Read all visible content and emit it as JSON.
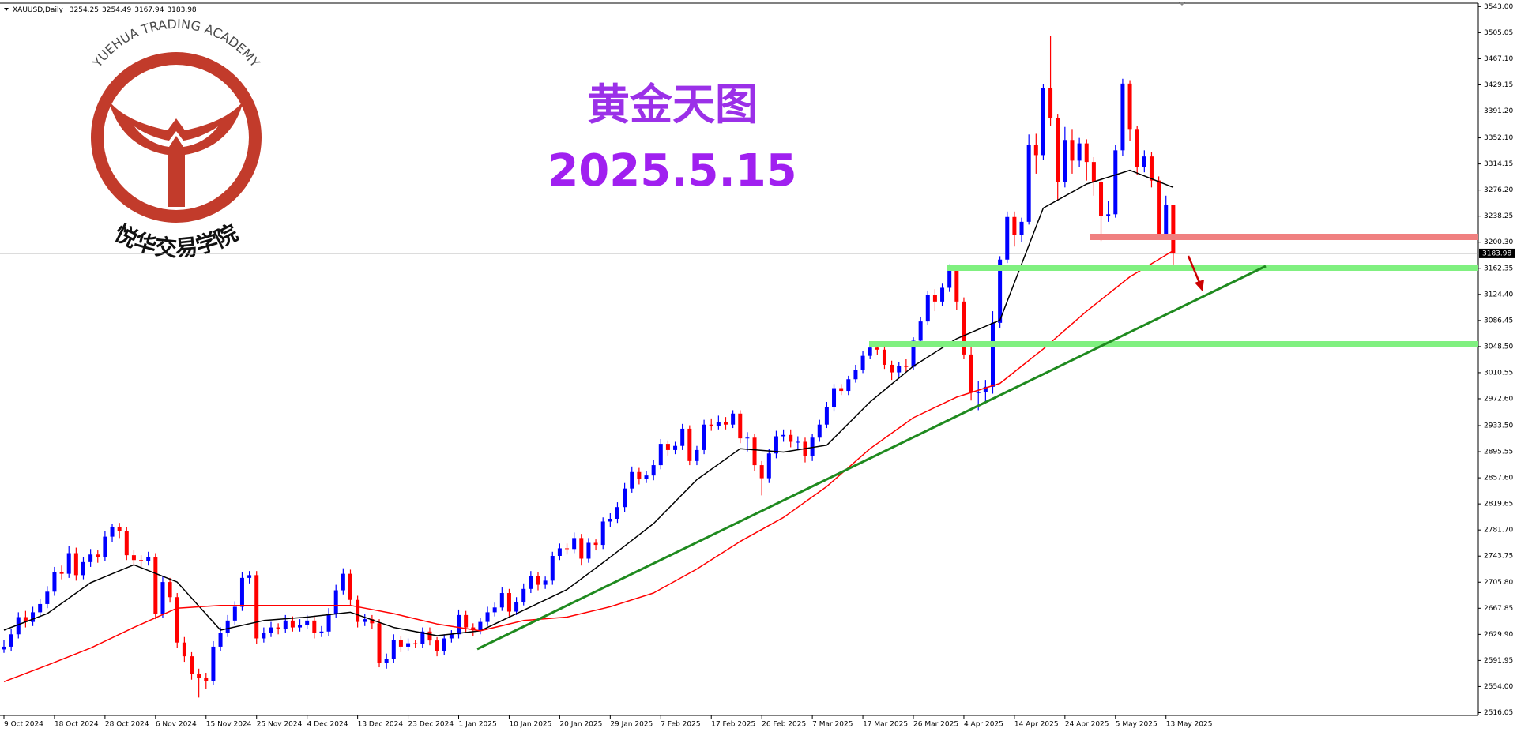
{
  "chart_data": {
    "type": "candlestick",
    "title": "XAUUSD,Daily",
    "annotations": [
      "黄金天图",
      "2025.5.15"
    ],
    "up_color": "#0000ff",
    "down_color": "#ff0000",
    "ylim": [
      2512,
      3548
    ],
    "yticks": [
      {
        "value": 3543,
        "label": "3543.00"
      },
      3505.05,
      {
        "value": 3467.1,
        "label": "3467.10"
      },
      3429.15,
      {
        "value": 3391.2,
        "label": "3391.20"
      },
      {
        "value": 3352.1,
        "label": "3352.10"
      },
      3314.15,
      {
        "value": 3276.2,
        "label": "3276.20"
      },
      3238.25,
      {
        "value": 3200.3,
        "label": "3200.30"
      },
      3162.35,
      {
        "value": 3124.4,
        "label": "3124.40"
      },
      3086.45,
      {
        "value": 3048.5,
        "label": "3048.50"
      },
      3010.55,
      {
        "value": 2972.6,
        "label": "2972.60"
      },
      {
        "value": 2933.5,
        "label": "2933.50"
      },
      2895.55,
      {
        "value": 2857.6,
        "label": "2857.60"
      },
      2819.65,
      {
        "value": 2781.7,
        "label": "2781.70"
      },
      2743.75,
      {
        "value": 2705.8,
        "label": "2705.80"
      },
      2667.85,
      {
        "value": 2629.9,
        "label": "2629.90"
      },
      2591.95,
      {
        "value": 2554,
        "label": "2554.00"
      },
      2516.05
    ],
    "categories": [
      "9 Oct 2024",
      null,
      null,
      null,
      null,
      null,
      null,
      "18 Oct 2024",
      null,
      null,
      null,
      null,
      null,
      null,
      "28 Oct 2024",
      null,
      null,
      null,
      null,
      null,
      null,
      "6 Nov 2024",
      null,
      null,
      null,
      null,
      null,
      null,
      "15 Nov 2024",
      null,
      null,
      null,
      null,
      null,
      null,
      "25 Nov 2024",
      null,
      null,
      null,
      null,
      null,
      null,
      "4 Dec 2024",
      null,
      null,
      null,
      null,
      null,
      null,
      "13 Dec 2024",
      null,
      null,
      null,
      null,
      null,
      null,
      "23 Dec 2024",
      null,
      null,
      null,
      null,
      null,
      null,
      "1 Jan 2025",
      null,
      null,
      null,
      null,
      null,
      null,
      "10 Jan 2025",
      null,
      null,
      null,
      null,
      null,
      null,
      "20 Jan 2025",
      null,
      null,
      null,
      null,
      null,
      null,
      "29 Jan 2025",
      null,
      null,
      null,
      null,
      null,
      null,
      "7 Feb 2025",
      null,
      null,
      null,
      null,
      null,
      null,
      "17 Feb 2025",
      null,
      null,
      null,
      null,
      null,
      null,
      "26 Feb 2025",
      null,
      null,
      null,
      null,
      null,
      null,
      "7 Mar 2025",
      null,
      null,
      null,
      null,
      null,
      null,
      "17 Mar 2025",
      null,
      null,
      null,
      null,
      null,
      null,
      "26 Mar 2025",
      null,
      null,
      null,
      null,
      null,
      null,
      "4 Apr 2025",
      null,
      null,
      null,
      null,
      null,
      null,
      "14 Apr 2025",
      null,
      null,
      null,
      null,
      null,
      null,
      "24 Apr 2025",
      null,
      null,
      null,
      null,
      null,
      null,
      "5 May 2025",
      null,
      null,
      null,
      null,
      null,
      null,
      "13 May 2025",
      null
    ],
    "ohlc": [
      [
        2608,
        2622,
        2603,
        2612
      ],
      [
        2612,
        2638,
        2605,
        2630
      ],
      [
        2630,
        2662,
        2624,
        2655
      ],
      [
        2655,
        2664,
        2640,
        2648
      ],
      [
        2648,
        2670,
        2642,
        2662
      ],
      [
        2662,
        2682,
        2655,
        2674
      ],
      [
        2674,
        2700,
        2668,
        2692
      ],
      [
        2692,
        2728,
        2686,
        2720
      ],
      [
        2720,
        2730,
        2710,
        2718
      ],
      [
        2718,
        2758,
        2712,
        2748
      ],
      [
        2748,
        2756,
        2708,
        2716
      ],
      [
        2716,
        2742,
        2710,
        2735
      ],
      [
        2735,
        2754,
        2728,
        2746
      ],
      [
        2746,
        2752,
        2734,
        2742
      ],
      [
        2742,
        2780,
        2736,
        2772
      ],
      [
        2772,
        2790,
        2764,
        2786
      ],
      [
        2786,
        2792,
        2770,
        2780
      ],
      [
        2780,
        2786,
        2738,
        2745
      ],
      [
        2745,
        2752,
        2730,
        2738
      ],
      [
        2738,
        2745,
        2728,
        2736
      ],
      [
        2736,
        2750,
        2730,
        2742
      ],
      [
        2742,
        2748,
        2652,
        2660
      ],
      [
        2660,
        2714,
        2654,
        2706
      ],
      [
        2706,
        2712,
        2676,
        2684
      ],
      [
        2684,
        2690,
        2610,
        2618
      ],
      [
        2618,
        2626,
        2590,
        2598
      ],
      [
        2598,
        2604,
        2564,
        2572
      ],
      [
        2572,
        2580,
        2538,
        2566
      ],
      [
        2566,
        2574,
        2550,
        2562
      ],
      [
        2562,
        2620,
        2556,
        2612
      ],
      [
        2612,
        2640,
        2606,
        2632
      ],
      [
        2632,
        2658,
        2626,
        2650
      ],
      [
        2650,
        2678,
        2644,
        2670
      ],
      [
        2670,
        2720,
        2664,
        2712
      ],
      [
        2712,
        2722,
        2704,
        2716
      ],
      [
        2716,
        2722,
        2616,
        2624
      ],
      [
        2624,
        2640,
        2618,
        2632
      ],
      [
        2632,
        2648,
        2626,
        2640
      ],
      [
        2640,
        2646,
        2630,
        2638
      ],
      [
        2638,
        2658,
        2632,
        2650
      ],
      [
        2650,
        2656,
        2634,
        2640
      ],
      [
        2640,
        2652,
        2634,
        2644
      ],
      [
        2644,
        2658,
        2638,
        2650
      ],
      [
        2650,
        2656,
        2624,
        2632
      ],
      [
        2632,
        2642,
        2626,
        2634
      ],
      [
        2634,
        2668,
        2628,
        2660
      ],
      [
        2660,
        2702,
        2654,
        2694
      ],
      [
        2694,
        2726,
        2688,
        2718
      ],
      [
        2718,
        2724,
        2672,
        2680
      ],
      [
        2680,
        2686,
        2640,
        2648
      ],
      [
        2648,
        2660,
        2642,
        2652
      ],
      [
        2652,
        2658,
        2638,
        2646
      ],
      [
        2646,
        2652,
        2582,
        2588
      ],
      [
        2588,
        2602,
        2580,
        2594
      ],
      [
        2594,
        2630,
        2588,
        2622
      ],
      [
        2622,
        2628,
        2604,
        2612
      ],
      [
        2612,
        2624,
        2606,
        2617
      ],
      [
        2617,
        2622,
        2610,
        2616
      ],
      [
        2616,
        2640,
        2610,
        2634
      ],
      [
        2634,
        2640,
        2614,
        2621
      ],
      [
        2621,
        2626,
        2598,
        2606
      ],
      [
        2606,
        2630,
        2600,
        2624
      ],
      [
        2624,
        2636,
        2618,
        2630
      ],
      [
        2630,
        2666,
        2624,
        2658
      ],
      [
        2658,
        2664,
        2632,
        2640
      ],
      [
        2640,
        2646,
        2628,
        2636
      ],
      [
        2636,
        2654,
        2630,
        2648
      ],
      [
        2648,
        2670,
        2642,
        2662
      ],
      [
        2662,
        2676,
        2656,
        2669
      ],
      [
        2669,
        2698,
        2664,
        2690
      ],
      [
        2690,
        2696,
        2656,
        2663
      ],
      [
        2663,
        2684,
        2658,
        2677
      ],
      [
        2677,
        2704,
        2672,
        2696
      ],
      [
        2696,
        2722,
        2690,
        2715
      ],
      [
        2715,
        2720,
        2694,
        2702
      ],
      [
        2702,
        2714,
        2696,
        2708
      ],
      [
        2708,
        2750,
        2702,
        2744
      ],
      [
        2744,
        2762,
        2738,
        2755
      ],
      [
        2755,
        2762,
        2746,
        2754
      ],
      [
        2754,
        2778,
        2748,
        2770
      ],
      [
        2770,
        2776,
        2730,
        2740
      ],
      [
        2740,
        2770,
        2734,
        2763
      ],
      [
        2763,
        2768,
        2752,
        2760
      ],
      [
        2760,
        2800,
        2754,
        2794
      ],
      [
        2794,
        2806,
        2786,
        2798
      ],
      [
        2798,
        2822,
        2792,
        2815
      ],
      [
        2815,
        2850,
        2808,
        2842
      ],
      [
        2842,
        2874,
        2836,
        2866
      ],
      [
        2866,
        2872,
        2848,
        2856
      ],
      [
        2856,
        2868,
        2850,
        2861
      ],
      [
        2861,
        2884,
        2854,
        2876
      ],
      [
        2876,
        2914,
        2870,
        2907
      ],
      [
        2907,
        2912,
        2890,
        2898
      ],
      [
        2898,
        2910,
        2892,
        2904
      ],
      [
        2904,
        2936,
        2898,
        2929
      ],
      [
        2929,
        2934,
        2876,
        2882
      ],
      [
        2882,
        2904,
        2876,
        2898
      ],
      [
        2898,
        2942,
        2892,
        2935
      ],
      [
        2935,
        2944,
        2926,
        2933
      ],
      [
        2933,
        2948,
        2928,
        2939
      ],
      [
        2939,
        2946,
        2928,
        2935
      ],
      [
        2935,
        2956,
        2930,
        2951
      ],
      [
        2951,
        2956,
        2908,
        2915
      ],
      [
        2915,
        2924,
        2896,
        2916
      ],
      [
        2916,
        2922,
        2868,
        2876
      ],
      [
        2876,
        2882,
        2832,
        2857
      ],
      [
        2857,
        2900,
        2850,
        2893
      ],
      [
        2893,
        2926,
        2886,
        2918
      ],
      [
        2918,
        2928,
        2910,
        2920
      ],
      [
        2920,
        2928,
        2902,
        2910
      ],
      [
        2910,
        2918,
        2900,
        2910
      ],
      [
        2910,
        2916,
        2880,
        2889
      ],
      [
        2889,
        2922,
        2882,
        2916
      ],
      [
        2916,
        2942,
        2910,
        2935
      ],
      [
        2935,
        2968,
        2930,
        2960
      ],
      [
        2960,
        2994,
        2954,
        2988
      ],
      [
        2988,
        2994,
        2978,
        2984
      ],
      [
        2984,
        3006,
        2978,
        3001
      ],
      [
        3001,
        3022,
        2996,
        3015
      ],
      [
        3015,
        3042,
        3010,
        3035
      ],
      [
        3035,
        3056,
        3030,
        3047
      ],
      [
        3047,
        3056,
        3036,
        3044
      ],
      [
        3044,
        3050,
        3016,
        3022
      ],
      [
        3022,
        3028,
        3000,
        3011
      ],
      [
        3011,
        3026,
        3004,
        3020
      ],
      [
        3020,
        3030,
        3012,
        3019
      ],
      [
        3019,
        3062,
        3014,
        3057
      ],
      [
        3057,
        3092,
        3052,
        3085
      ],
      [
        3085,
        3130,
        3080,
        3124
      ],
      [
        3124,
        3132,
        3100,
        3114
      ],
      [
        3114,
        3140,
        3108,
        3134
      ],
      [
        3134,
        3168,
        3128,
        3160
      ],
      [
        3160,
        3166,
        3102,
        3114
      ],
      [
        3114,
        3120,
        3030,
        3037
      ],
      [
        3037,
        3055,
        2970,
        2982
      ],
      [
        2982,
        2998,
        2956,
        2982
      ],
      [
        2982,
        3000,
        2966,
        2990
      ],
      [
        2990,
        3100,
        2980,
        3083
      ],
      [
        3083,
        3180,
        3076,
        3175
      ],
      [
        3175,
        3245,
        3170,
        3237
      ],
      [
        3237,
        3245,
        3194,
        3211
      ],
      [
        3211,
        3236,
        3200,
        3230
      ],
      [
        3230,
        3357,
        3226,
        3342
      ],
      [
        3342,
        3358,
        3300,
        3327
      ],
      [
        3327,
        3430,
        3320,
        3424
      ],
      [
        3424,
        3500,
        3370,
        3381
      ],
      [
        3381,
        3386,
        3260,
        3288
      ],
      [
        3288,
        3368,
        3280,
        3349
      ],
      [
        3349,
        3365,
        3300,
        3319
      ],
      [
        3319,
        3352,
        3310,
        3344
      ],
      [
        3344,
        3350,
        3290,
        3317
      ],
      [
        3317,
        3324,
        3268,
        3288
      ],
      [
        3288,
        3294,
        3202,
        3239
      ],
      [
        3239,
        3260,
        3230,
        3241
      ],
      [
        3241,
        3342,
        3236,
        3334
      ],
      [
        3334,
        3438,
        3326,
        3431
      ],
      [
        3431,
        3436,
        3348,
        3365
      ],
      [
        3365,
        3370,
        3298,
        3310
      ],
      [
        3310,
        3334,
        3302,
        3325
      ],
      [
        3325,
        3332,
        3280,
        3290
      ],
      [
        3290,
        3296,
        3204,
        3212
      ],
      [
        3212,
        3268,
        3205,
        3254
      ],
      [
        3254.25,
        3254.49,
        3167.94,
        3183.98
      ]
    ],
    "indicators": [
      {
        "color": "#000000",
        "x": [
          0,
          6,
          12,
          18,
          24,
          30,
          36,
          42,
          48,
          54,
          60,
          66,
          72,
          78,
          84,
          90,
          96,
          102,
          108,
          114,
          120,
          126,
          132,
          138,
          144,
          150,
          156,
          162
        ],
        "values": [
          2636,
          2660,
          2705,
          2731,
          2706,
          2636,
          2650,
          2655,
          2662,
          2640,
          2628,
          2635,
          2665,
          2695,
          2742,
          2791,
          2855,
          2900,
          2895,
          2905,
          2968,
          3020,
          3060,
          3087,
          3250,
          3285,
          3305,
          3280
        ]
      },
      {
        "color": "#ff0000",
        "x": [
          0,
          6,
          12,
          18,
          24,
          30,
          36,
          42,
          48,
          54,
          60,
          66,
          72,
          78,
          84,
          90,
          96,
          102,
          108,
          114,
          120,
          126,
          132,
          138,
          144,
          150,
          156,
          162
        ],
        "values": [
          2561,
          2585,
          2610,
          2640,
          2668,
          2672,
          2672,
          2672,
          2672,
          2660,
          2645,
          2635,
          2650,
          2655,
          2670,
          2690,
          2725,
          2765,
          2800,
          2845,
          2900,
          2945,
          2975,
          2995,
          3045,
          3100,
          3150,
          3188
        ]
      }
    ]
  },
  "logo": {
    "name_en": "YUEHUA TRADING ACADEMY",
    "name_cn": "悦华交易学院"
  }
}
